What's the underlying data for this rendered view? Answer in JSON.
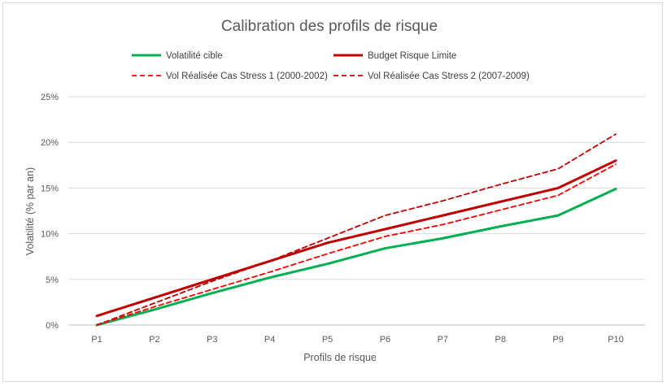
{
  "chart_data": {
    "type": "line",
    "title": "Calibration des profils de risque",
    "xlabel": "Profils de risque",
    "ylabel": "Volatilité (% par an)",
    "categories": [
      "P1",
      "P2",
      "P3",
      "P4",
      "P5",
      "P6",
      "P7",
      "P8",
      "P9",
      "P10"
    ],
    "y_ticks": [
      "0%",
      "5%",
      "10%",
      "15%",
      "20%",
      "25%"
    ],
    "ylim": [
      0,
      25
    ],
    "grid": true,
    "legend_position": "top",
    "series": [
      {
        "name": "Volatilité cible",
        "color": "#00b050",
        "style": "solid",
        "values": [
          0.0,
          1.7,
          3.5,
          5.2,
          6.7,
          8.4,
          9.5,
          10.8,
          12.0,
          14.9
        ]
      },
      {
        "name": "Budget Risque Limite",
        "color": "#c00000",
        "style": "solid",
        "values": [
          1.0,
          3.0,
          5.0,
          7.0,
          9.0,
          10.5,
          12.0,
          13.5,
          15.0,
          18.0
        ]
      },
      {
        "name": "Vol Réalisée Cas Stress 1 (2000-2002)",
        "color": "#ff0000",
        "style": "dashed",
        "values": [
          0.0,
          2.0,
          3.9,
          5.8,
          7.8,
          9.7,
          11.0,
          12.6,
          14.2,
          17.6
        ]
      },
      {
        "name": "Vol Réalisée Cas Stress 2 (2007-2009)",
        "color": "#c00000",
        "style": "dashed",
        "values": [
          0.0,
          2.4,
          4.8,
          7.0,
          9.5,
          12.0,
          13.6,
          15.4,
          17.1,
          20.9
        ]
      }
    ]
  }
}
